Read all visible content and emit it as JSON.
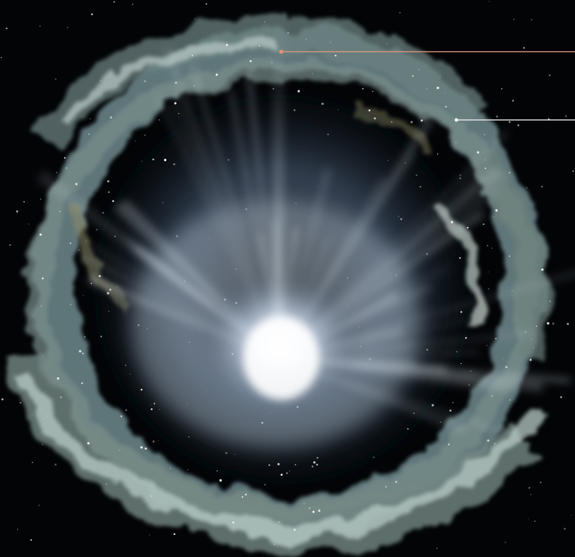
{
  "image": {
    "subject": "nebula",
    "colors": {
      "background": "#020406",
      "core": "#f4f8ff",
      "glow": "#cfe0ee",
      "inner_haze": "#8fa6bf",
      "ring_cloud": "#6f8a8e",
      "ring_highlight": "#b9ccc6",
      "warm_tint": "#8e8a66",
      "star": "#ffffff"
    }
  },
  "callouts": [
    {
      "name": "callout-line-upper",
      "color": "#d9957a",
      "label": ""
    },
    {
      "name": "callout-line-lower",
      "color": "#e6e6e6",
      "label": ""
    }
  ]
}
